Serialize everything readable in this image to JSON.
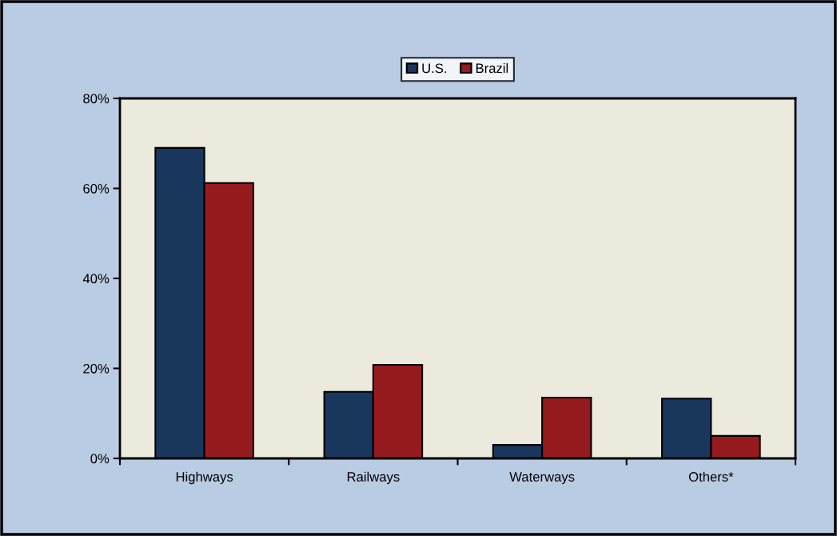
{
  "chart_data": {
    "type": "bar",
    "categories": [
      "Highways",
      "Railways",
      "Waterways",
      "Others*"
    ],
    "series": [
      {
        "name": "U.S.",
        "color": "#19365d",
        "values": [
          69.0,
          14.8,
          3.0,
          13.3
        ]
      },
      {
        "name": "Brazil",
        "color": "#961b1f",
        "values": [
          61.2,
          20.8,
          13.5,
          5.0
        ]
      }
    ],
    "ylim": [
      0,
      80
    ],
    "yticks": [
      {
        "value": 0,
        "label": "0%"
      },
      {
        "value": 20,
        "label": "20%"
      },
      {
        "value": 40,
        "label": "40%"
      },
      {
        "value": 60,
        "label": "60%"
      },
      {
        "value": 80,
        "label": "80%"
      }
    ],
    "grid": false,
    "legend": "top"
  }
}
